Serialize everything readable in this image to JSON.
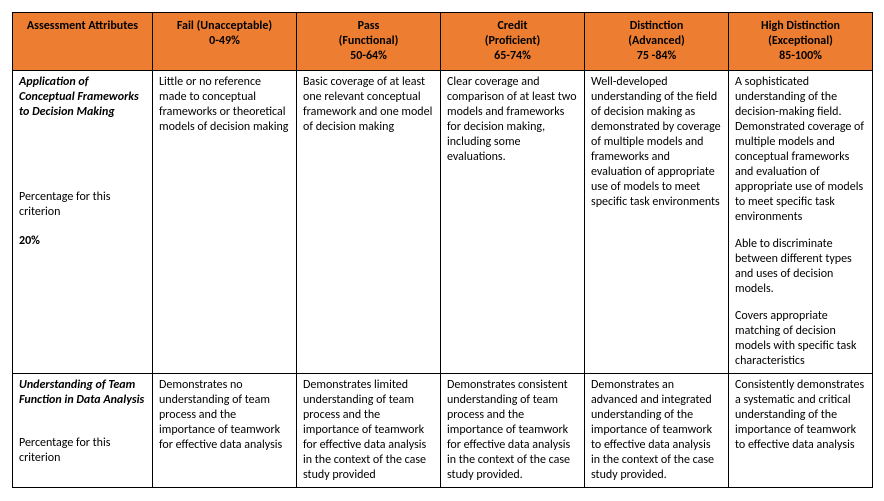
{
  "header": {
    "attributes": "Assessment Attributes",
    "levels": [
      "Fail (Unacceptable)\n0-49%",
      "Pass\n(Functional)\n50-64%",
      "Credit\n(Proficient)\n65-74%",
      "Distinction\n(Advanced)\n75 -84%",
      "High Distinction\n(Exceptional)\n85-100%"
    ]
  },
  "rows": [
    {
      "title": "Application of Conceptual Frameworks to Decision Making",
      "pct_label": "Percentage for this criterion",
      "pct_value": "20%",
      "cells": [
        "Little or no reference made to conceptual frameworks or theoretical models of decision making",
        "Basic coverage of at least one relevant conceptual framework and one model of decision making",
        "Clear coverage and comparison of at least two models and frameworks for decision making, including some evaluations.",
        "Well-developed understanding of the field of decision making as demonstrated by coverage of multiple models and frameworks and evaluation of appropriate use of models to meet specific task environments",
        "A sophisticated understanding of the decision-making field. Demonstrated coverage of multiple models and conceptual frameworks and evaluation of appropriate use of models to meet specific task environments\n\nAble to discriminate between different types and uses of decision models.\n\nCovers appropriate matching of decision models with specific task characteristics"
      ]
    },
    {
      "title": "Understanding of Team Function in Data Analysis",
      "pct_label": "Percentage for this criterion",
      "pct_value": "",
      "cells": [
        "Demonstrates no understanding of team process and the importance of teamwork for effective data analysis",
        "Demonstrates limited understanding of team process and the importance of teamwork for effective data analysis in the context of the case study provided",
        "Demonstrates consistent understanding of team process and the importance of teamwork for effective data analysis in the context of the case study provided.",
        "Demonstrates an advanced and integrated understanding of the importance of teamwork to effective data analysis in the context of the case study provided.",
        "Consistently demonstrates a systematic and critical understanding of the importance of teamwork to effective data analysis"
      ]
    }
  ],
  "colors": {
    "header_bg": "#ed7d31",
    "border": "#000000",
    "text": "#000000",
    "page_bg": "#ffffff"
  }
}
